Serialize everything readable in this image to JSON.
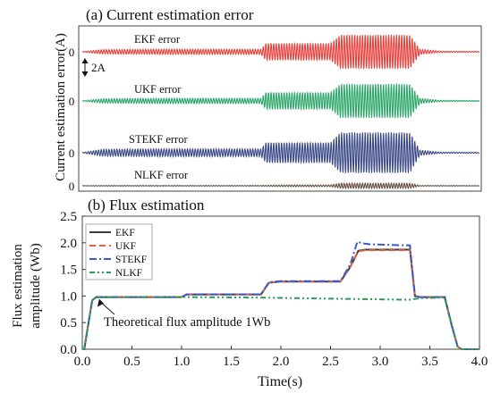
{
  "chart_data": [
    {
      "type": "line",
      "title": "(a) Current estimation error",
      "ylabel": "Current estimation error(A)",
      "scale_annotation": "2A",
      "x": [
        0.0,
        0.5,
        1.0,
        1.5,
        1.8,
        2.0,
        2.5,
        2.6,
        3.3,
        3.4,
        3.8,
        4.0
      ],
      "series": [
        {
          "name": "EKF error",
          "label": "EKF error",
          "zero_label": "0",
          "color": "#e8413d",
          "envelope": [
            [
              0.0,
              0.02
            ],
            [
              0.2,
              0.25
            ],
            [
              0.8,
              0.3
            ],
            [
              1.8,
              0.3
            ],
            [
              1.85,
              1.0
            ],
            [
              2.0,
              1.0
            ],
            [
              2.5,
              1.0
            ],
            [
              2.6,
              2.0
            ],
            [
              3.3,
              2.0
            ],
            [
              3.4,
              0.3
            ],
            [
              3.6,
              0.08
            ],
            [
              4.0,
              0.05
            ]
          ]
        },
        {
          "name": "UKF error",
          "label": "UKF error",
          "zero_label": "0",
          "color": "#2ca66a",
          "envelope": [
            [
              0.0,
              0.02
            ],
            [
              0.2,
              0.25
            ],
            [
              0.8,
              0.3
            ],
            [
              1.8,
              0.3
            ],
            [
              1.85,
              1.0
            ],
            [
              2.0,
              1.0
            ],
            [
              2.5,
              1.0
            ],
            [
              2.6,
              2.0
            ],
            [
              3.3,
              2.0
            ],
            [
              3.4,
              0.3
            ],
            [
              3.6,
              0.08
            ],
            [
              4.0,
              0.05
            ]
          ]
        },
        {
          "name": "STEKF error",
          "label": "STEKF error",
          "zero_label": "0",
          "color": "#3b4a86",
          "envelope": [
            [
              0.0,
              0.02
            ],
            [
              0.2,
              0.4
            ],
            [
              0.8,
              0.45
            ],
            [
              1.8,
              0.45
            ],
            [
              1.85,
              1.2
            ],
            [
              2.0,
              1.2
            ],
            [
              2.5,
              1.2
            ],
            [
              2.6,
              2.4
            ],
            [
              3.3,
              2.4
            ],
            [
              3.4,
              0.3
            ],
            [
              3.6,
              0.08
            ],
            [
              4.0,
              0.05
            ]
          ]
        },
        {
          "name": "NLKF error",
          "label": "NLKF error",
          "zero_label": "0",
          "color": "#6b5048",
          "envelope": [
            [
              0.0,
              0.02
            ],
            [
              0.2,
              0.04
            ],
            [
              1.8,
              0.04
            ],
            [
              2.0,
              0.1
            ],
            [
              2.5,
              0.1
            ],
            [
              2.6,
              0.3
            ],
            [
              3.3,
              0.3
            ],
            [
              3.4,
              0.04
            ],
            [
              4.0,
              0.03
            ]
          ]
        }
      ]
    },
    {
      "type": "line",
      "title": "(b) Flux estimation",
      "xlabel": "Time(s)",
      "ylabel_lines": [
        "Flux estimation",
        "amplitude (Wb)"
      ],
      "xlim": [
        0.0,
        4.0
      ],
      "ylim": [
        0.0,
        2.5
      ],
      "xticks": [
        "0.0",
        "0.5",
        "1.0",
        "1.5",
        "2.0",
        "2.5",
        "3.0",
        "3.5",
        "4.0"
      ],
      "yticks": [
        "0.0",
        "0.5",
        "1.0",
        "1.5",
        "2.0",
        "2.5"
      ],
      "annotation": "Theoretical flux amplitude 1Wb",
      "annotation_target": [
        0.17,
        0.98
      ],
      "legend_position": "top-left",
      "series": [
        {
          "name": "EKF",
          "color": "#3a3a3a",
          "dash": "",
          "points": [
            [
              0.0,
              0.0
            ],
            [
              0.02,
              0.0
            ],
            [
              0.05,
              0.35
            ],
            [
              0.1,
              0.92
            ],
            [
              0.14,
              0.98
            ],
            [
              1.0,
              0.98
            ],
            [
              1.05,
              1.03
            ],
            [
              1.8,
              1.03
            ],
            [
              1.88,
              1.25
            ],
            [
              2.0,
              1.27
            ],
            [
              2.6,
              1.27
            ],
            [
              2.7,
              1.55
            ],
            [
              2.78,
              1.85
            ],
            [
              2.85,
              1.87
            ],
            [
              3.3,
              1.87
            ],
            [
              3.35,
              1.0
            ],
            [
              3.4,
              0.98
            ],
            [
              3.65,
              0.98
            ],
            [
              3.72,
              0.45
            ],
            [
              3.78,
              0.05
            ],
            [
              3.82,
              0.0
            ],
            [
              4.0,
              0.0
            ]
          ]
        },
        {
          "name": "UKF",
          "color": "#e06040",
          "dash": "7,4",
          "points": [
            [
              0.0,
              0.0
            ],
            [
              0.02,
              0.0
            ],
            [
              0.05,
              0.35
            ],
            [
              0.1,
              0.92
            ],
            [
              0.14,
              0.98
            ],
            [
              1.0,
              0.98
            ],
            [
              1.05,
              1.03
            ],
            [
              1.8,
              1.03
            ],
            [
              1.88,
              1.25
            ],
            [
              2.0,
              1.27
            ],
            [
              2.6,
              1.27
            ],
            [
              2.7,
              1.55
            ],
            [
              2.78,
              1.84
            ],
            [
              2.85,
              1.86
            ],
            [
              3.3,
              1.86
            ],
            [
              3.35,
              1.0
            ],
            [
              3.4,
              0.98
            ],
            [
              3.65,
              0.98
            ],
            [
              3.72,
              0.45
            ],
            [
              3.78,
              0.05
            ],
            [
              3.82,
              0.0
            ],
            [
              4.0,
              0.0
            ]
          ]
        },
        {
          "name": "STEKF",
          "color": "#3a5cc8",
          "dash": "8,3,2,3",
          "points": [
            [
              0.0,
              0.0
            ],
            [
              0.02,
              0.0
            ],
            [
              0.05,
              0.35
            ],
            [
              0.1,
              0.92
            ],
            [
              0.14,
              0.98
            ],
            [
              1.0,
              0.98
            ],
            [
              1.05,
              1.03
            ],
            [
              1.8,
              1.03
            ],
            [
              1.88,
              1.26
            ],
            [
              2.0,
              1.28
            ],
            [
              2.6,
              1.28
            ],
            [
              2.7,
              1.6
            ],
            [
              2.77,
              2.02
            ],
            [
              2.82,
              1.99
            ],
            [
              2.9,
              1.97
            ],
            [
              3.3,
              1.95
            ],
            [
              3.35,
              1.0
            ],
            [
              3.4,
              0.98
            ],
            [
              3.65,
              0.98
            ],
            [
              3.72,
              0.45
            ],
            [
              3.78,
              0.05
            ],
            [
              3.82,
              0.0
            ],
            [
              4.0,
              0.0
            ]
          ]
        },
        {
          "name": "NLKF",
          "color": "#2e9a58",
          "dash": "6,3,2,3,2,3",
          "points": [
            [
              0.0,
              0.0
            ],
            [
              0.02,
              0.0
            ],
            [
              0.05,
              0.35
            ],
            [
              0.1,
              0.92
            ],
            [
              0.14,
              0.98
            ],
            [
              1.0,
              0.98
            ],
            [
              1.8,
              0.97
            ],
            [
              2.5,
              0.95
            ],
            [
              3.3,
              0.93
            ],
            [
              3.4,
              0.96
            ],
            [
              3.65,
              0.97
            ],
            [
              3.72,
              0.45
            ],
            [
              3.78,
              0.05
            ],
            [
              3.82,
              0.0
            ],
            [
              4.0,
              0.0
            ]
          ]
        }
      ]
    }
  ]
}
